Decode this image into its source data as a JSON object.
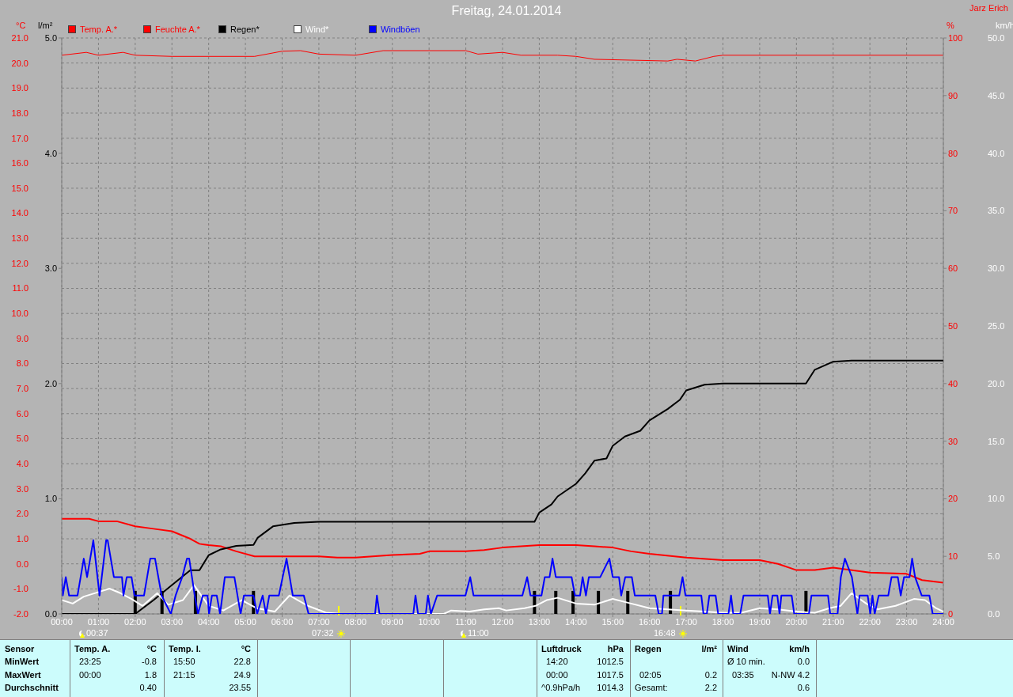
{
  "chart_data": [
    {
      "type": "line",
      "title": "Freitag, 24.01.2014",
      "ylabel": "°C",
      "y2label": "%",
      "xlim": [
        0,
        24
      ],
      "xticks": [
        {
          "value": 0,
          "label": "00:00"
        },
        {
          "value": 1,
          "label": "01:00"
        },
        {
          "value": 2,
          "label": "02:00"
        },
        {
          "value": 3,
          "label": "03:00"
        },
        {
          "value": 4,
          "label": "04:00"
        },
        {
          "value": 5,
          "label": "05:00"
        },
        {
          "value": 6,
          "label": "06:00"
        },
        {
          "value": 7,
          "label": "07:00"
        },
        {
          "value": 8,
          "label": "08:00"
        },
        {
          "value": 9,
          "label": "09:00"
        },
        {
          "value": 10,
          "label": "10:00"
        },
        {
          "value": 11,
          "label": "11:00"
        },
        {
          "value": 12,
          "label": "12:00"
        },
        {
          "value": 13,
          "label": "13:00"
        },
        {
          "value": 14,
          "label": "14:00"
        },
        {
          "value": 15,
          "label": "15:00"
        },
        {
          "value": 16,
          "label": "16:00"
        },
        {
          "value": 17,
          "label": "17:00"
        },
        {
          "value": 18,
          "label": "18:00"
        },
        {
          "value": 19,
          "label": "19:00"
        },
        {
          "value": 20,
          "label": "20:00"
        },
        {
          "value": 21,
          "label": "21:00"
        },
        {
          "value": 22,
          "label": "22:00"
        },
        {
          "value": 23,
          "label": "23:00"
        },
        {
          "value": 24,
          "label": "24:00"
        }
      ],
      "ylim": [
        -2,
        21
      ],
      "yticks": [
        {
          "value": -2,
          "label": "-2.0"
        },
        {
          "value": -1,
          "label": "-1.0"
        },
        {
          "value": 0,
          "label": "0.0"
        },
        {
          "value": 1,
          "label": "1.0"
        },
        {
          "value": 2,
          "label": "2.0"
        },
        {
          "value": 3,
          "label": "3.0"
        },
        {
          "value": 4,
          "label": "4.0"
        },
        {
          "value": 5,
          "label": "5.0"
        },
        {
          "value": 6,
          "label": "6.0"
        },
        {
          "value": 7,
          "label": "7.0"
        },
        {
          "value": 8,
          "label": "8.0"
        },
        {
          "value": 9,
          "label": "9.0"
        },
        {
          "value": 10,
          "label": "10.0"
        },
        {
          "value": 11,
          "label": "11.0"
        },
        {
          "value": 12,
          "label": "12.0"
        },
        {
          "value": 13,
          "label": "13.0"
        },
        {
          "value": 14,
          "label": "14.0"
        },
        {
          "value": 15,
          "label": "15.0"
        },
        {
          "value": 16,
          "label": "16.0"
        },
        {
          "value": 17,
          "label": "17.0"
        },
        {
          "value": 18,
          "label": "18.0"
        },
        {
          "value": 19,
          "label": "19.0"
        },
        {
          "value": 20,
          "label": "20.0"
        },
        {
          "value": 21,
          "label": "21.0"
        }
      ],
      "y2lim": [
        0,
        100
      ],
      "y2ticks": [
        0,
        10,
        20,
        30,
        40,
        50,
        60,
        70,
        80,
        90,
        100
      ],
      "grid": true,
      "legend": "top",
      "series": [
        {
          "name": "Temp. A.*",
          "color": "#ff0000",
          "x": [
            0,
            0.75,
            1,
            1.5,
            2,
            2.5,
            3,
            3.5,
            3.75,
            4,
            4.33,
            4.75,
            5.25,
            6,
            7,
            7.5,
            8,
            9,
            9.75,
            10,
            11,
            11.5,
            12,
            13,
            14,
            14.5,
            15,
            15.5,
            16,
            17,
            18,
            19,
            19.5,
            20,
            20.5,
            21,
            22,
            23,
            23.42,
            24
          ],
          "values": [
            1.8,
            1.8,
            1.7,
            1.7,
            1.5,
            1.4,
            1.3,
            1.0,
            0.8,
            0.75,
            0.7,
            0.5,
            0.3,
            0.3,
            0.3,
            0.25,
            0.25,
            0.35,
            0.4,
            0.5,
            0.5,
            0.55,
            0.65,
            0.75,
            0.75,
            0.7,
            0.65,
            0.5,
            0.4,
            0.25,
            0.15,
            0.15,
            0.0,
            -0.25,
            -0.25,
            -0.15,
            -0.35,
            -0.4,
            -0.65,
            -0.75
          ]
        },
        {
          "name": "Feuchte A.*",
          "axis": "y2",
          "color": "#ff0000",
          "x": [
            0,
            0.67,
            1,
            1.67,
            2,
            3,
            5.25,
            6,
            6.5,
            7,
            8,
            8.75,
            11,
            11.33,
            12,
            12.5,
            13.5,
            14,
            14.5,
            16.5,
            16.75,
            17.25,
            17.75,
            18,
            24
          ],
          "values": [
            97,
            97.5,
            97,
            97.5,
            97,
            96.8,
            96.8,
            97.7,
            97.8,
            97.2,
            97.0,
            97.8,
            97.8,
            97.2,
            97.5,
            97,
            97,
            96.8,
            96.3,
            96,
            96.3,
            96,
            96.8,
            97,
            97
          ]
        }
      ],
      "annotations": [
        "00:37",
        "07:32",
        "11:00",
        "16:48",
        "Jarz Erich",
        "Sensor",
        "MinWert",
        "MaxWert",
        "Durchschnitt",
        "Temp. A.",
        "°C",
        "23:25",
        "-0.8",
        "00:00",
        "1.8",
        "0.40",
        "Temp. I.",
        "°C",
        "15:50",
        "22.8",
        "21:15",
        "24.9",
        "23.55",
        "Luftdruck",
        "hPa",
        "14:20",
        "1012.5",
        "00:00",
        "1017.5",
        "^0.9hPa/h",
        "1014.3",
        "Regen",
        "l/m²",
        "02:05",
        "0.2",
        "Gesamt:",
        "2.2",
        "Wind",
        "km/h",
        "Ø 10 min.",
        "0.0",
        "03:35",
        "N-NW 4.2",
        "0.6"
      ]
    },
    {
      "type": "line",
      "ylabel": "l/m²",
      "y2label": "km/h",
      "xlim": [
        0,
        24
      ],
      "tick_labels": "y",
      "ylim": [
        0,
        5
      ],
      "yticks": [
        {
          "value": 0,
          "label": "0.0"
        },
        {
          "value": 1,
          "label": "1.0"
        },
        {
          "value": 2,
          "label": "2.0"
        },
        {
          "value": 3,
          "label": "3.0"
        },
        {
          "value": 4,
          "label": "4.0"
        },
        {
          "value": 5,
          "label": "5.0"
        }
      ],
      "y2lim": [
        0,
        50
      ],
      "y2ticks": [
        {
          "value": 0,
          "label": "0.0"
        },
        {
          "value": 5,
          "label": "5.0"
        },
        {
          "value": 10,
          "label": "10.0"
        },
        {
          "value": 15,
          "label": "15.0"
        },
        {
          "value": 20,
          "label": "20.0"
        },
        {
          "value": 25,
          "label": "25.0"
        },
        {
          "value": 30,
          "label": "30.0"
        },
        {
          "value": 35,
          "label": "35.0"
        },
        {
          "value": 40,
          "label": "40.0"
        },
        {
          "value": 45,
          "label": "45.0"
        },
        {
          "value": 50,
          "label": "50.0"
        }
      ],
      "legend": "top",
      "series": [
        {
          "name": "Regen*",
          "color": "#000000",
          "x": [
            0,
            2.0,
            2.5,
            3,
            3.5,
            3.75,
            4,
            4.33,
            4.75,
            5.22,
            5.33,
            5.75,
            6.33,
            7,
            12.87,
            13,
            13.33,
            13.5,
            14,
            14.25,
            14.5,
            14.83,
            15,
            15.33,
            15.75,
            16,
            16.5,
            16.83,
            17,
            17.5,
            18,
            20.26,
            20.5,
            21,
            21.5,
            24
          ],
          "values": [
            0,
            0,
            0.12,
            0.25,
            0.38,
            0.38,
            0.51,
            0.56,
            0.59,
            0.6,
            0.66,
            0.76,
            0.79,
            0.8,
            0.8,
            0.88,
            0.95,
            1.02,
            1.13,
            1.22,
            1.33,
            1.35,
            1.46,
            1.54,
            1.59,
            1.68,
            1.78,
            1.86,
            1.94,
            1.99,
            2.0,
            2.0,
            2.12,
            2.19,
            2.2,
            2.2
          ]
        },
        {
          "type": "bar",
          "color": "#000000",
          "x": [
            2.0,
            2.73,
            3.64,
            5.22,
            12.87,
            13.45,
            13.92,
            14.61,
            15.41,
            16.57,
            20.26
          ],
          "values": [
            0.2,
            0.2,
            0.2,
            0.2,
            0.2,
            0.2,
            0.2,
            0.2,
            0.2,
            0.2,
            0.2
          ]
        },
        {
          "name": "Wind*",
          "axis": "y2",
          "color": "#ffffff",
          "x": [
            0,
            0.3,
            0.6,
            1.0,
            1.3,
            1.6,
            1.9,
            2.2,
            2.6,
            2.9,
            3.3,
            3.6,
            4.0,
            4.4,
            4.9,
            5.3,
            5.8,
            6.2,
            6.7,
            7.2,
            7.6,
            10.4,
            10.6,
            11.1,
            11.5,
            11.9,
            12.1,
            12.6,
            12.9,
            13.2,
            13.5,
            14.0,
            14.5,
            15.0,
            15.5,
            16.0,
            16.5,
            17.0,
            17.5,
            18.0,
            18.5,
            19.0,
            19.5,
            20.0,
            20.5,
            20.9,
            21.2,
            21.5,
            21.9,
            22.2,
            22.7,
            23.2,
            23.5,
            23.8,
            24
          ],
          "values": [
            1.2,
            0.9,
            1.5,
            1.9,
            2.2,
            1.8,
            1.3,
            0.7,
            1.8,
            0.8,
            1.2,
            2.5,
            0.7,
            0.3,
            1.2,
            0.5,
            0.2,
            1.6,
            0.7,
            0.1,
            0,
            0,
            0.3,
            0.2,
            0.4,
            0.5,
            0.3,
            0.5,
            0.7,
            1.2,
            1.4,
            0.9,
            0.8,
            1.3,
            0.9,
            0.5,
            0.4,
            0.3,
            0.2,
            0.1,
            0.1,
            0.5,
            0.4,
            0.2,
            0.1,
            0.5,
            0.7,
            1.8,
            0.9,
            0.4,
            0.7,
            1.3,
            1.2,
            0.5,
            0.2
          ]
        },
        {
          "name": "Windböen",
          "axis": "y2",
          "color": "#0000ff",
          "x": [
            0,
            0.03,
            0.11,
            0.2,
            0.43,
            0.6,
            0.69,
            0.86,
            1.03,
            1.21,
            1.25,
            1.42,
            1.64,
            1.68,
            1.77,
            1.9,
            1.98,
            2.24,
            2.41,
            2.54,
            2.72,
            2.97,
            3.1,
            3.28,
            3.41,
            3.47,
            3.62,
            3.71,
            3.84,
            3.97,
            4.01,
            4.09,
            4.22,
            4.31,
            4.44,
            4.7,
            4.87,
            4.96,
            5.22,
            5.32,
            5.47,
            5.56,
            5.65,
            5.91,
            6.12,
            6.29,
            6.59,
            6.72,
            8.53,
            8.58,
            8.65,
            9.57,
            9.63,
            9.7,
            9.91,
            9.97,
            10.05,
            10.22,
            10.82,
            10.99,
            11.12,
            11.21,
            11.84,
            12.11,
            12.54,
            12.67,
            12.76,
            13.06,
            13.15,
            13.28,
            13.36,
            13.45,
            13.88,
            13.97,
            14.11,
            14.18,
            14.27,
            14.35,
            14.66,
            14.91,
            15.0,
            15.17,
            15.23,
            15.34,
            15.52,
            15.6,
            16.16,
            16.25,
            16.34,
            16.38,
            16.81,
            16.9,
            16.98,
            17.41,
            17.47,
            17.56,
            17.63,
            17.8,
            17.87,
            18.15,
            18.22,
            18.28,
            18.47,
            18.56,
            19.22,
            19.28,
            19.35,
            19.48,
            19.54,
            19.59,
            19.87,
            19.94,
            20.34,
            20.41,
            20.86,
            20.92,
            21.12,
            21.21,
            21.32,
            21.51,
            21.66,
            21.72,
            21.94,
            22.01,
            22.07,
            22.13,
            22.24,
            22.5,
            22.59,
            22.76,
            22.84,
            22.93,
            23.08,
            23.15,
            23.23,
            23.41,
            23.62,
            23.71,
            24
          ],
          "values": [
            3.2,
            1.6,
            3.2,
            1.6,
            1.6,
            4.8,
            3.2,
            6.4,
            1.6,
            6.4,
            6.4,
            3.2,
            3.2,
            1.6,
            3.2,
            3.2,
            1.6,
            1.6,
            4.8,
            4.8,
            1.6,
            0,
            1.6,
            3.2,
            4.8,
            4.8,
            1.6,
            0,
            1.6,
            1.6,
            0,
            1.6,
            1.6,
            0,
            3.2,
            3.2,
            0,
            1.6,
            1.6,
            0,
            1.6,
            0,
            1.6,
            1.6,
            4.8,
            1.6,
            1.6,
            0,
            0,
            1.6,
            0,
            0,
            1.6,
            0,
            0,
            1.6,
            0,
            1.6,
            1.6,
            1.6,
            3.2,
            1.6,
            1.6,
            1.6,
            1.6,
            3.2,
            1.6,
            1.6,
            3.2,
            3.2,
            4.8,
            3.2,
            3.2,
            1.6,
            1.6,
            3.2,
            1.6,
            3.2,
            3.2,
            4.8,
            3.2,
            3.2,
            1.6,
            3.2,
            3.2,
            1.6,
            1.6,
            0,
            0,
            1.6,
            1.6,
            3.2,
            1.6,
            1.6,
            0,
            0,
            1.6,
            1.6,
            0,
            0,
            1.6,
            0,
            0,
            1.6,
            1.6,
            0,
            1.6,
            1.6,
            0,
            1.6,
            1.6,
            0,
            0,
            1.6,
            1.6,
            0,
            0,
            3.2,
            4.8,
            3.2,
            0,
            1.6,
            1.6,
            0,
            1.6,
            0,
            1.6,
            1.6,
            3.2,
            3.2,
            1.6,
            3.2,
            3.2,
            4.8,
            3.2,
            1.6,
            1.6,
            0,
            0
          ]
        }
      ]
    }
  ]
}
